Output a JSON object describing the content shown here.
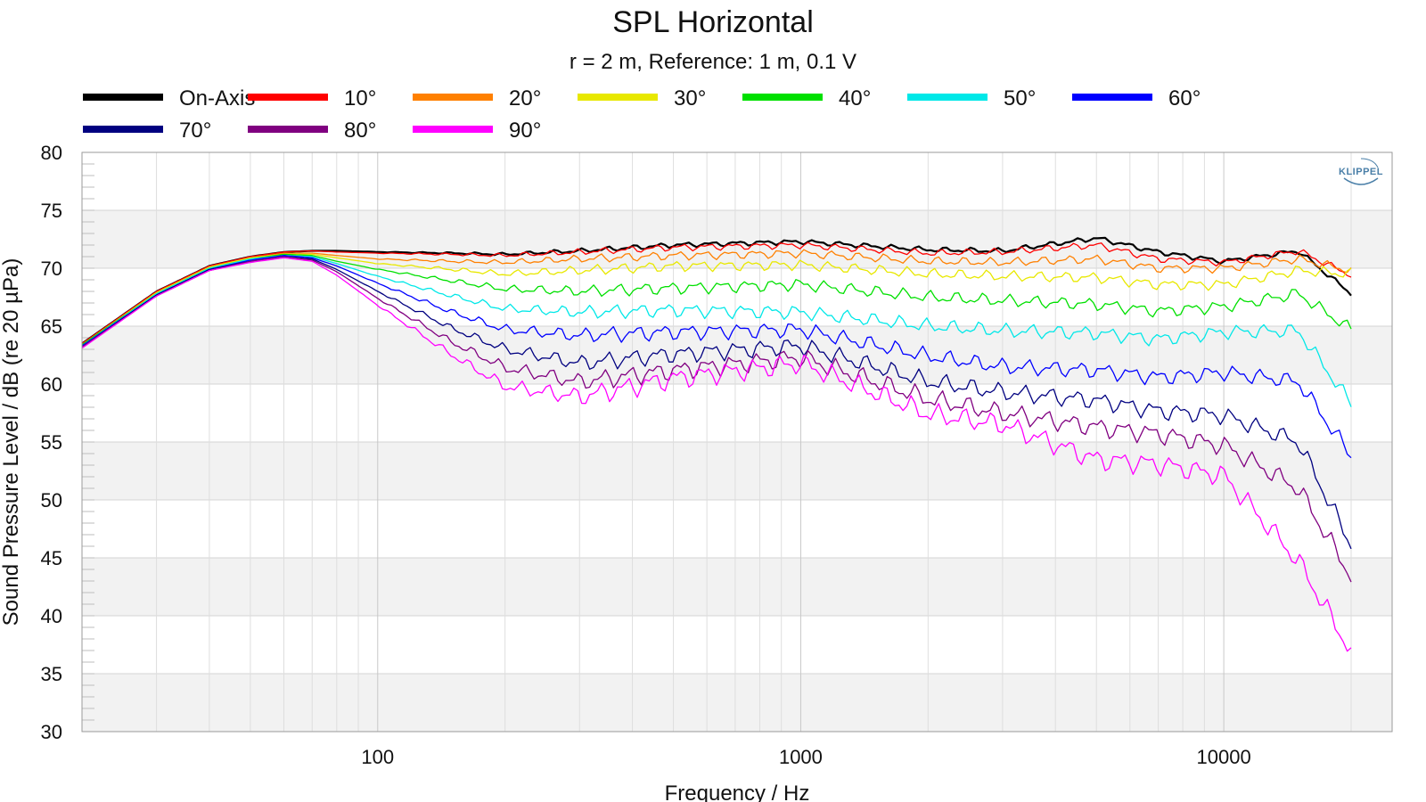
{
  "chart_data": {
    "type": "line",
    "title": "SPL Horizontal",
    "subtitle": "r = 2 m,  Reference: 1 m, 0.1 V",
    "xlabel": "Frequency / Hz",
    "ylabel": "Sound Pressure Level / dB (re 20 µPa)",
    "xscale": "log",
    "xlim": [
      20,
      25000
    ],
    "ylim": [
      30,
      80
    ],
    "xticks": [
      100,
      1000,
      10000
    ],
    "xtick_labels": [
      "100",
      "1000",
      "10000"
    ],
    "yticks": [
      30,
      35,
      40,
      45,
      50,
      55,
      60,
      65,
      70,
      75,
      80
    ],
    "ytick_labels": [
      "30",
      "35",
      "40",
      "45",
      "50",
      "55",
      "60",
      "65",
      "70",
      "75",
      "80"
    ],
    "grid": true,
    "legend_position": "top",
    "brand": "KLIPPEL",
    "x": [
      20,
      30,
      40,
      50,
      60,
      70,
      80,
      100,
      150,
      200,
      300,
      500,
      1000,
      2000,
      3000,
      5000,
      7000,
      10000,
      15000,
      20000
    ],
    "series": [
      {
        "name": "On-Axis",
        "color": "#000000",
        "values": [
          63.5,
          68,
          70.2,
          71.0,
          71.4,
          71.5,
          71.5,
          71.4,
          71.3,
          71.2,
          71.5,
          72.0,
          72.3,
          71.6,
          71.5,
          72.6,
          71.4,
          70.6,
          71.5,
          67.8
        ]
      },
      {
        "name": "10°",
        "color": "#ff0000",
        "values": [
          63.5,
          68,
          70.2,
          71.0,
          71.4,
          71.5,
          71.4,
          71.3,
          71.2,
          71.1,
          71.4,
          71.8,
          72.0,
          71.3,
          71.4,
          72.0,
          70.8,
          70.5,
          71.5,
          69.4
        ]
      },
      {
        "name": "20°",
        "color": "#ff8000",
        "values": [
          63.4,
          67.9,
          70.1,
          70.9,
          71.3,
          71.3,
          71.1,
          70.8,
          70.6,
          70.5,
          70.8,
          71.1,
          71.3,
          70.6,
          70.5,
          70.8,
          70.0,
          70.0,
          70.8,
          69.8
        ]
      },
      {
        "name": "30°",
        "color": "#e8e800",
        "values": [
          63.4,
          67.9,
          70.1,
          70.9,
          71.2,
          71.2,
          70.9,
          70.4,
          69.9,
          69.5,
          69.8,
          70.2,
          70.3,
          69.5,
          69.3,
          69.2,
          68.6,
          68.6,
          69.8,
          69.5
        ]
      },
      {
        "name": "40°",
        "color": "#00e000",
        "values": [
          63.4,
          67.8,
          70.0,
          70.8,
          71.2,
          71.1,
          70.6,
          69.9,
          68.9,
          68.2,
          68.0,
          68.3,
          68.6,
          67.5,
          67.2,
          66.9,
          66.3,
          66.7,
          67.8,
          64.7
        ]
      },
      {
        "name": "50°",
        "color": "#00e8e8",
        "values": [
          63.3,
          67.8,
          70.0,
          70.8,
          71.1,
          71.0,
          70.4,
          69.3,
          67.6,
          66.5,
          66.2,
          66.4,
          66.2,
          65.0,
          64.6,
          64.4,
          63.9,
          64.5,
          64.6,
          58.3
        ]
      },
      {
        "name": "60°",
        "color": "#0000ff",
        "values": [
          63.3,
          67.7,
          69.9,
          70.7,
          71.1,
          70.9,
          70.2,
          68.7,
          66.2,
          64.7,
          64.2,
          64.5,
          64.7,
          62.4,
          61.5,
          61.2,
          60.6,
          61.0,
          60.2,
          53.8
        ]
      },
      {
        "name": "70°",
        "color": "#000080",
        "values": [
          63.2,
          67.7,
          69.9,
          70.6,
          71.0,
          70.8,
          69.9,
          68.0,
          64.8,
          63.0,
          61.8,
          62.6,
          63.3,
          60.2,
          59.3,
          58.6,
          57.7,
          57.3,
          55.0,
          46.1
        ]
      },
      {
        "name": "80°",
        "color": "#800080",
        "values": [
          63.2,
          67.6,
          69.8,
          70.6,
          71.0,
          70.7,
          69.7,
          67.4,
          63.6,
          61.4,
          60.2,
          61.2,
          62.3,
          58.7,
          57.5,
          56.3,
          55.7,
          54.7,
          51.0,
          43.4
        ]
      },
      {
        "name": "90°",
        "color": "#ff00ff",
        "values": [
          63.1,
          67.6,
          69.8,
          70.5,
          70.9,
          70.6,
          69.4,
          66.8,
          62.5,
          59.8,
          58.9,
          60.5,
          61.8,
          57.4,
          56.5,
          53.5,
          53.1,
          52.1,
          44.7,
          36.9
        ]
      }
    ]
  }
}
